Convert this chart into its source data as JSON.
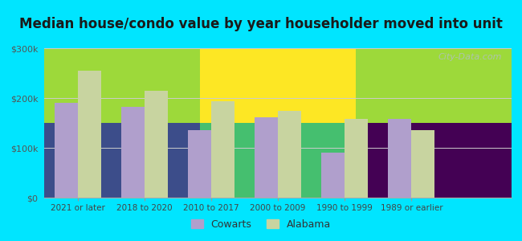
{
  "title": "Median house/condo value by year householder moved into unit",
  "categories": [
    "2021 or later",
    "2018 to 2020",
    "2010 to 2017",
    "2000 to 2009",
    "1990 to 1999",
    "1989 or earlier"
  ],
  "cowarts_values": [
    190000,
    182000,
    135000,
    162000,
    90000,
    158000
  ],
  "alabama_values": [
    255000,
    215000,
    193000,
    175000,
    158000,
    135000
  ],
  "cowarts_color": "#b09fcc",
  "alabama_color": "#c8d4a0",
  "background_outer": "#00e5ff",
  "background_inner_topleft": "#e8f5e0",
  "background_inner_topright": "#f5faf5",
  "ylim": [
    0,
    300000
  ],
  "yticks": [
    0,
    100000,
    200000,
    300000
  ],
  "ytick_labels": [
    "$0",
    "$100k",
    "$200k",
    "$300k"
  ],
  "watermark": "City-Data.com",
  "legend_labels": [
    "Cowarts",
    "Alabama"
  ],
  "title_fontsize": 12
}
